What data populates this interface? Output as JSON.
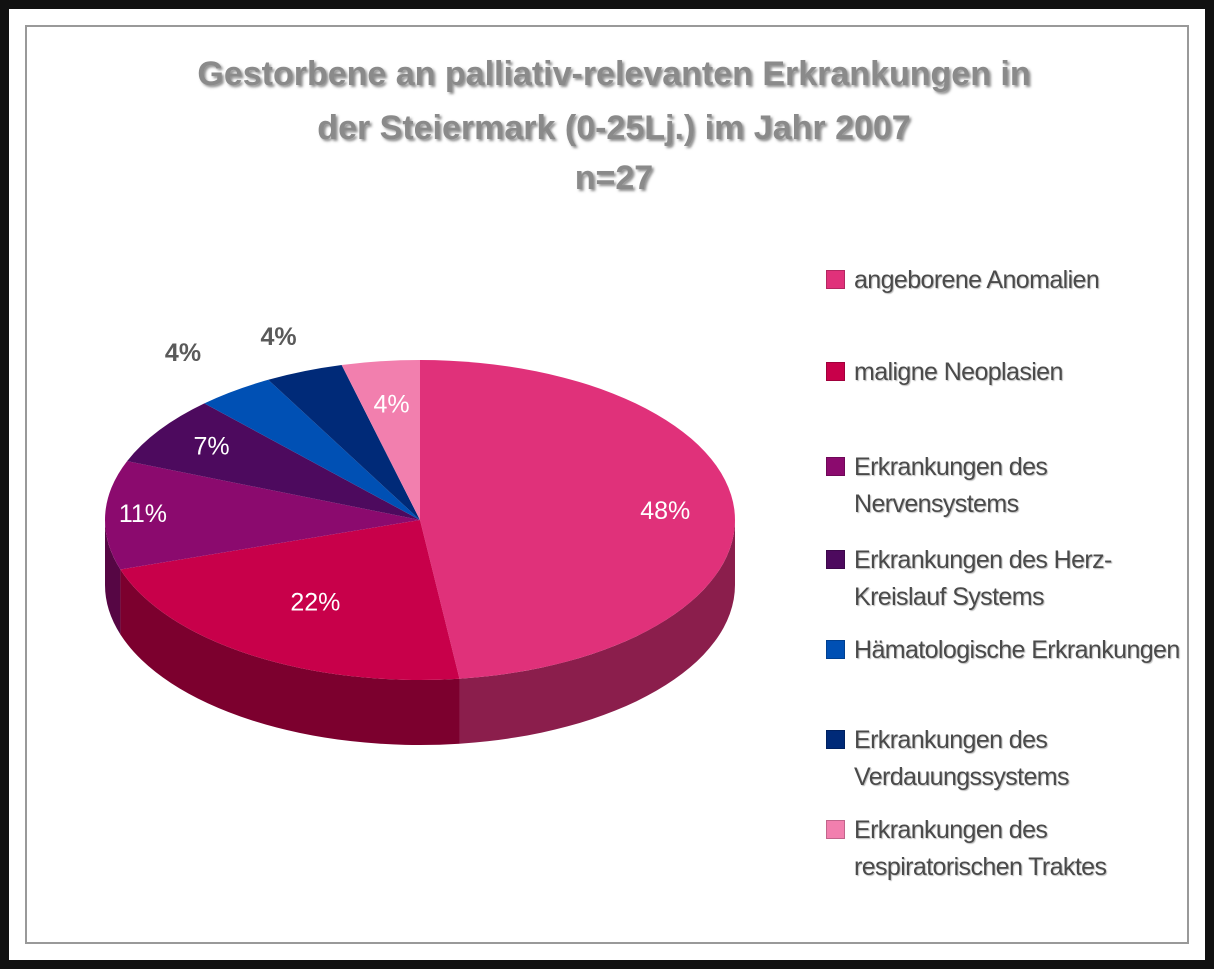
{
  "chart_data": {
    "type": "pie3d",
    "title": [
      "Gestorbene an palliativ-relevanten Erkrankungen in",
      "der  Steiermark (0-25Lj.) im Jahr 2007",
      "n=27"
    ],
    "categories": [
      "angeborene Anomalien",
      "maligne Neoplasien",
      "Erkrankungen des Nervensystems",
      "Erkrankungen des Herz-Kreislauf Systems",
      "Hämatologische Erkrankungen",
      "Erkrankungen des Verdauungssystems",
      "Erkrankungen des respiratorischen Traktes"
    ],
    "values": [
      48,
      22,
      11,
      7,
      4,
      4,
      4
    ],
    "value_labels": [
      "48%",
      "22%",
      "11%",
      "7%",
      "4%",
      "4%",
      "4%"
    ],
    "colors": [
      "#e0317a",
      "#c8004a",
      "#8b0a6e",
      "#4d0a5e",
      "#0050b4",
      "#002a78",
      "#f27fae"
    ],
    "legend": "right"
  }
}
